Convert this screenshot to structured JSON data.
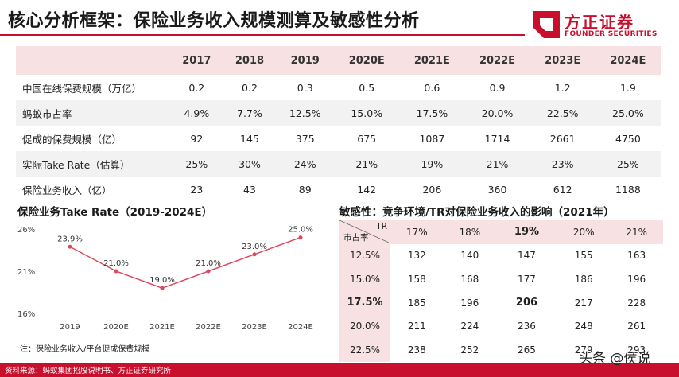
{
  "header": {
    "title": "核心分析框架：保险业务收入规模测算及敏感性分析",
    "logo_cn": "方正证券",
    "logo_en": "FOUNDER SECURITIES"
  },
  "main_table": {
    "years": [
      "2017",
      "2018",
      "2019",
      "2020E",
      "2021E",
      "2022E",
      "2023E",
      "2024E"
    ],
    "rows": [
      {
        "label": "中国在线保费规模（万亿）",
        "values": [
          "0.2",
          "0.2",
          "0.3",
          "0.5",
          "0.6",
          "0.9",
          "1.2",
          "1.9"
        ]
      },
      {
        "label": "蚂蚁市占率",
        "values": [
          "4.9%",
          "7.7%",
          "12.5%",
          "15.0%",
          "17.5%",
          "20.0%",
          "22.5%",
          "25.0%"
        ]
      },
      {
        "label": "促成的保费规模（亿）",
        "values": [
          "92",
          "145",
          "375",
          "675",
          "1087",
          "1714",
          "2661",
          "4750"
        ]
      },
      {
        "label": "实际Take Rate（估算）",
        "values": [
          "25%",
          "30%",
          "24%",
          "21%",
          "19%",
          "21%",
          "23%",
          "25%"
        ]
      },
      {
        "label": "保险业务收入（亿）",
        "values": [
          "23",
          "43",
          "89",
          "142",
          "206",
          "360",
          "612",
          "1188"
        ]
      }
    ]
  },
  "chart_title": "保险业务Take Rate（2019-2024E）",
  "chart_data": {
    "type": "line",
    "categories": [
      "2019",
      "2020E",
      "2021E",
      "2022E",
      "2023E",
      "2024E"
    ],
    "values": [
      23.9,
      21.0,
      19.0,
      21.0,
      23.0,
      25.0
    ],
    "data_labels": [
      "23.9%",
      "21.0%",
      "19.0%",
      "21.0%",
      "23.0%",
      "25.0%"
    ],
    "y_ticks": [
      "26%",
      "21%",
      "16%"
    ],
    "ylim": [
      16,
      26
    ],
    "color": "#e0475c"
  },
  "chart_note": "注：保险业务收入/平台促成保费规模",
  "sensitivity": {
    "title": "敏感性：竞争环境/TR对保险业务收入的影响（2021年）",
    "corner_top": "TR",
    "corner_bottom": "市占率",
    "tr_values": [
      "17%",
      "18%",
      "19%",
      "20%",
      "21%"
    ],
    "rows": [
      {
        "share": "12.5%",
        "values": [
          "132",
          "140",
          "147",
          "155",
          "163"
        ]
      },
      {
        "share": "15.0%",
        "values": [
          "158",
          "168",
          "177",
          "186",
          "196"
        ]
      },
      {
        "share": "17.5%",
        "values": [
          "185",
          "196",
          "206",
          "217",
          "228"
        ]
      },
      {
        "share": "20.0%",
        "values": [
          "211",
          "224",
          "236",
          "248",
          "261"
        ]
      },
      {
        "share": "22.5%",
        "values": [
          "238",
          "252",
          "265",
          "279",
          "293"
        ]
      }
    ]
  },
  "footer": {
    "source": "资料来源：蚂蚁集团招股说明书、方正证券研究所",
    "watermark": "头条 @侯说"
  }
}
